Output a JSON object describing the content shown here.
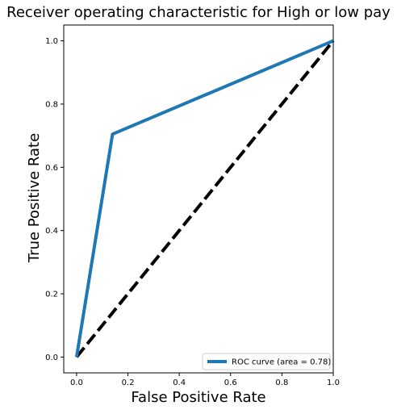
{
  "chart_data": {
    "type": "line",
    "title": "Receiver operating characteristic for High or low pay",
    "xlabel": "False Positive Rate",
    "ylabel": "True Positive Rate",
    "xlim": [
      -0.05,
      1.0
    ],
    "ylim": [
      -0.05,
      1.05
    ],
    "xticks": [
      "0.0",
      "0.2",
      "0.4",
      "0.6",
      "0.8",
      "1.0"
    ],
    "yticks": [
      "0.0",
      "0.2",
      "0.4",
      "0.6",
      "0.8",
      "1.0"
    ],
    "grid": false,
    "legend_position": "lower-right",
    "series": [
      {
        "name": "ROC curve (area = 0.78)",
        "color": "#1f77b4",
        "style": "solid",
        "x": [
          0.0,
          0.14,
          1.0
        ],
        "y": [
          0.0,
          0.705,
          1.0
        ]
      },
      {
        "color": "#000000",
        "style": "dashed",
        "x": [
          0.0,
          1.0
        ],
        "y": [
          0.0,
          1.0
        ]
      }
    ]
  }
}
